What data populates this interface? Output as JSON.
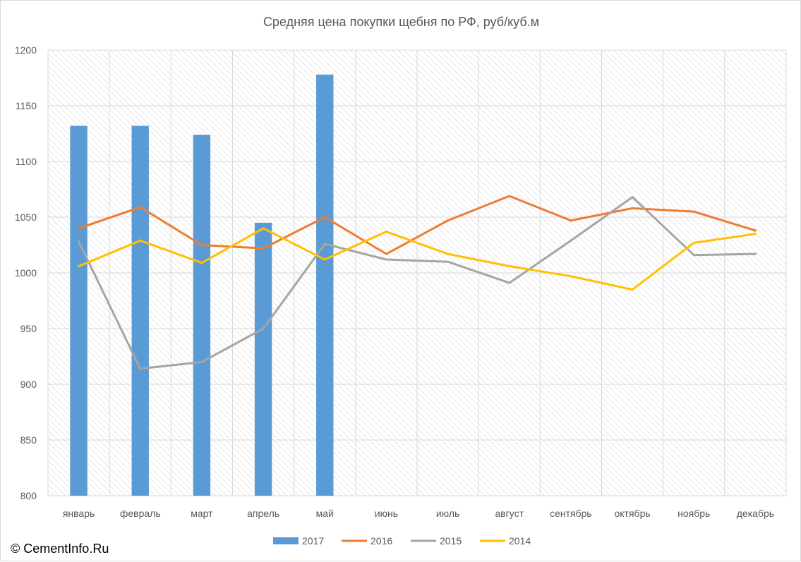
{
  "chart_data": {
    "type": "bar+line",
    "title": "Средняя цена покупки щебня по РФ, руб/куб.м",
    "categories": [
      "январь",
      "февраль",
      "март",
      "апрель",
      "май",
      "июнь",
      "июль",
      "август",
      "сентябрь",
      "октябрь",
      "ноябрь",
      "декабрь"
    ],
    "ylim": [
      800,
      1200
    ],
    "yticks": [
      800,
      850,
      900,
      950,
      1000,
      1050,
      1100,
      1150,
      1200
    ],
    "grid": true,
    "legend_position": "bottom",
    "series": [
      {
        "name": "2017",
        "kind": "bar",
        "color": "#5b9bd5",
        "values": [
          1132,
          1132,
          1124,
          1045,
          1178,
          null,
          null,
          null,
          null,
          null,
          null,
          null
        ]
      },
      {
        "name": "2016",
        "kind": "line",
        "color": "#ed7d31",
        "values": [
          1040,
          1059,
          1025,
          1022,
          1050,
          1017,
          1047,
          1069,
          1047,
          1058,
          1055,
          1038
        ]
      },
      {
        "name": "2015",
        "kind": "line",
        "color": "#a5a5a5",
        "values": [
          1028,
          914,
          920,
          950,
          1026,
          1012,
          1010,
          991,
          1029,
          1068,
          1016,
          1017
        ]
      },
      {
        "name": "2014",
        "kind": "line",
        "color": "#ffc000",
        "values": [
          1006,
          1029,
          1009,
          1040,
          1012,
          1037,
          1017,
          1006,
          997,
          985,
          1027,
          1035
        ]
      }
    ]
  },
  "watermark": "© CementInfo.Ru"
}
